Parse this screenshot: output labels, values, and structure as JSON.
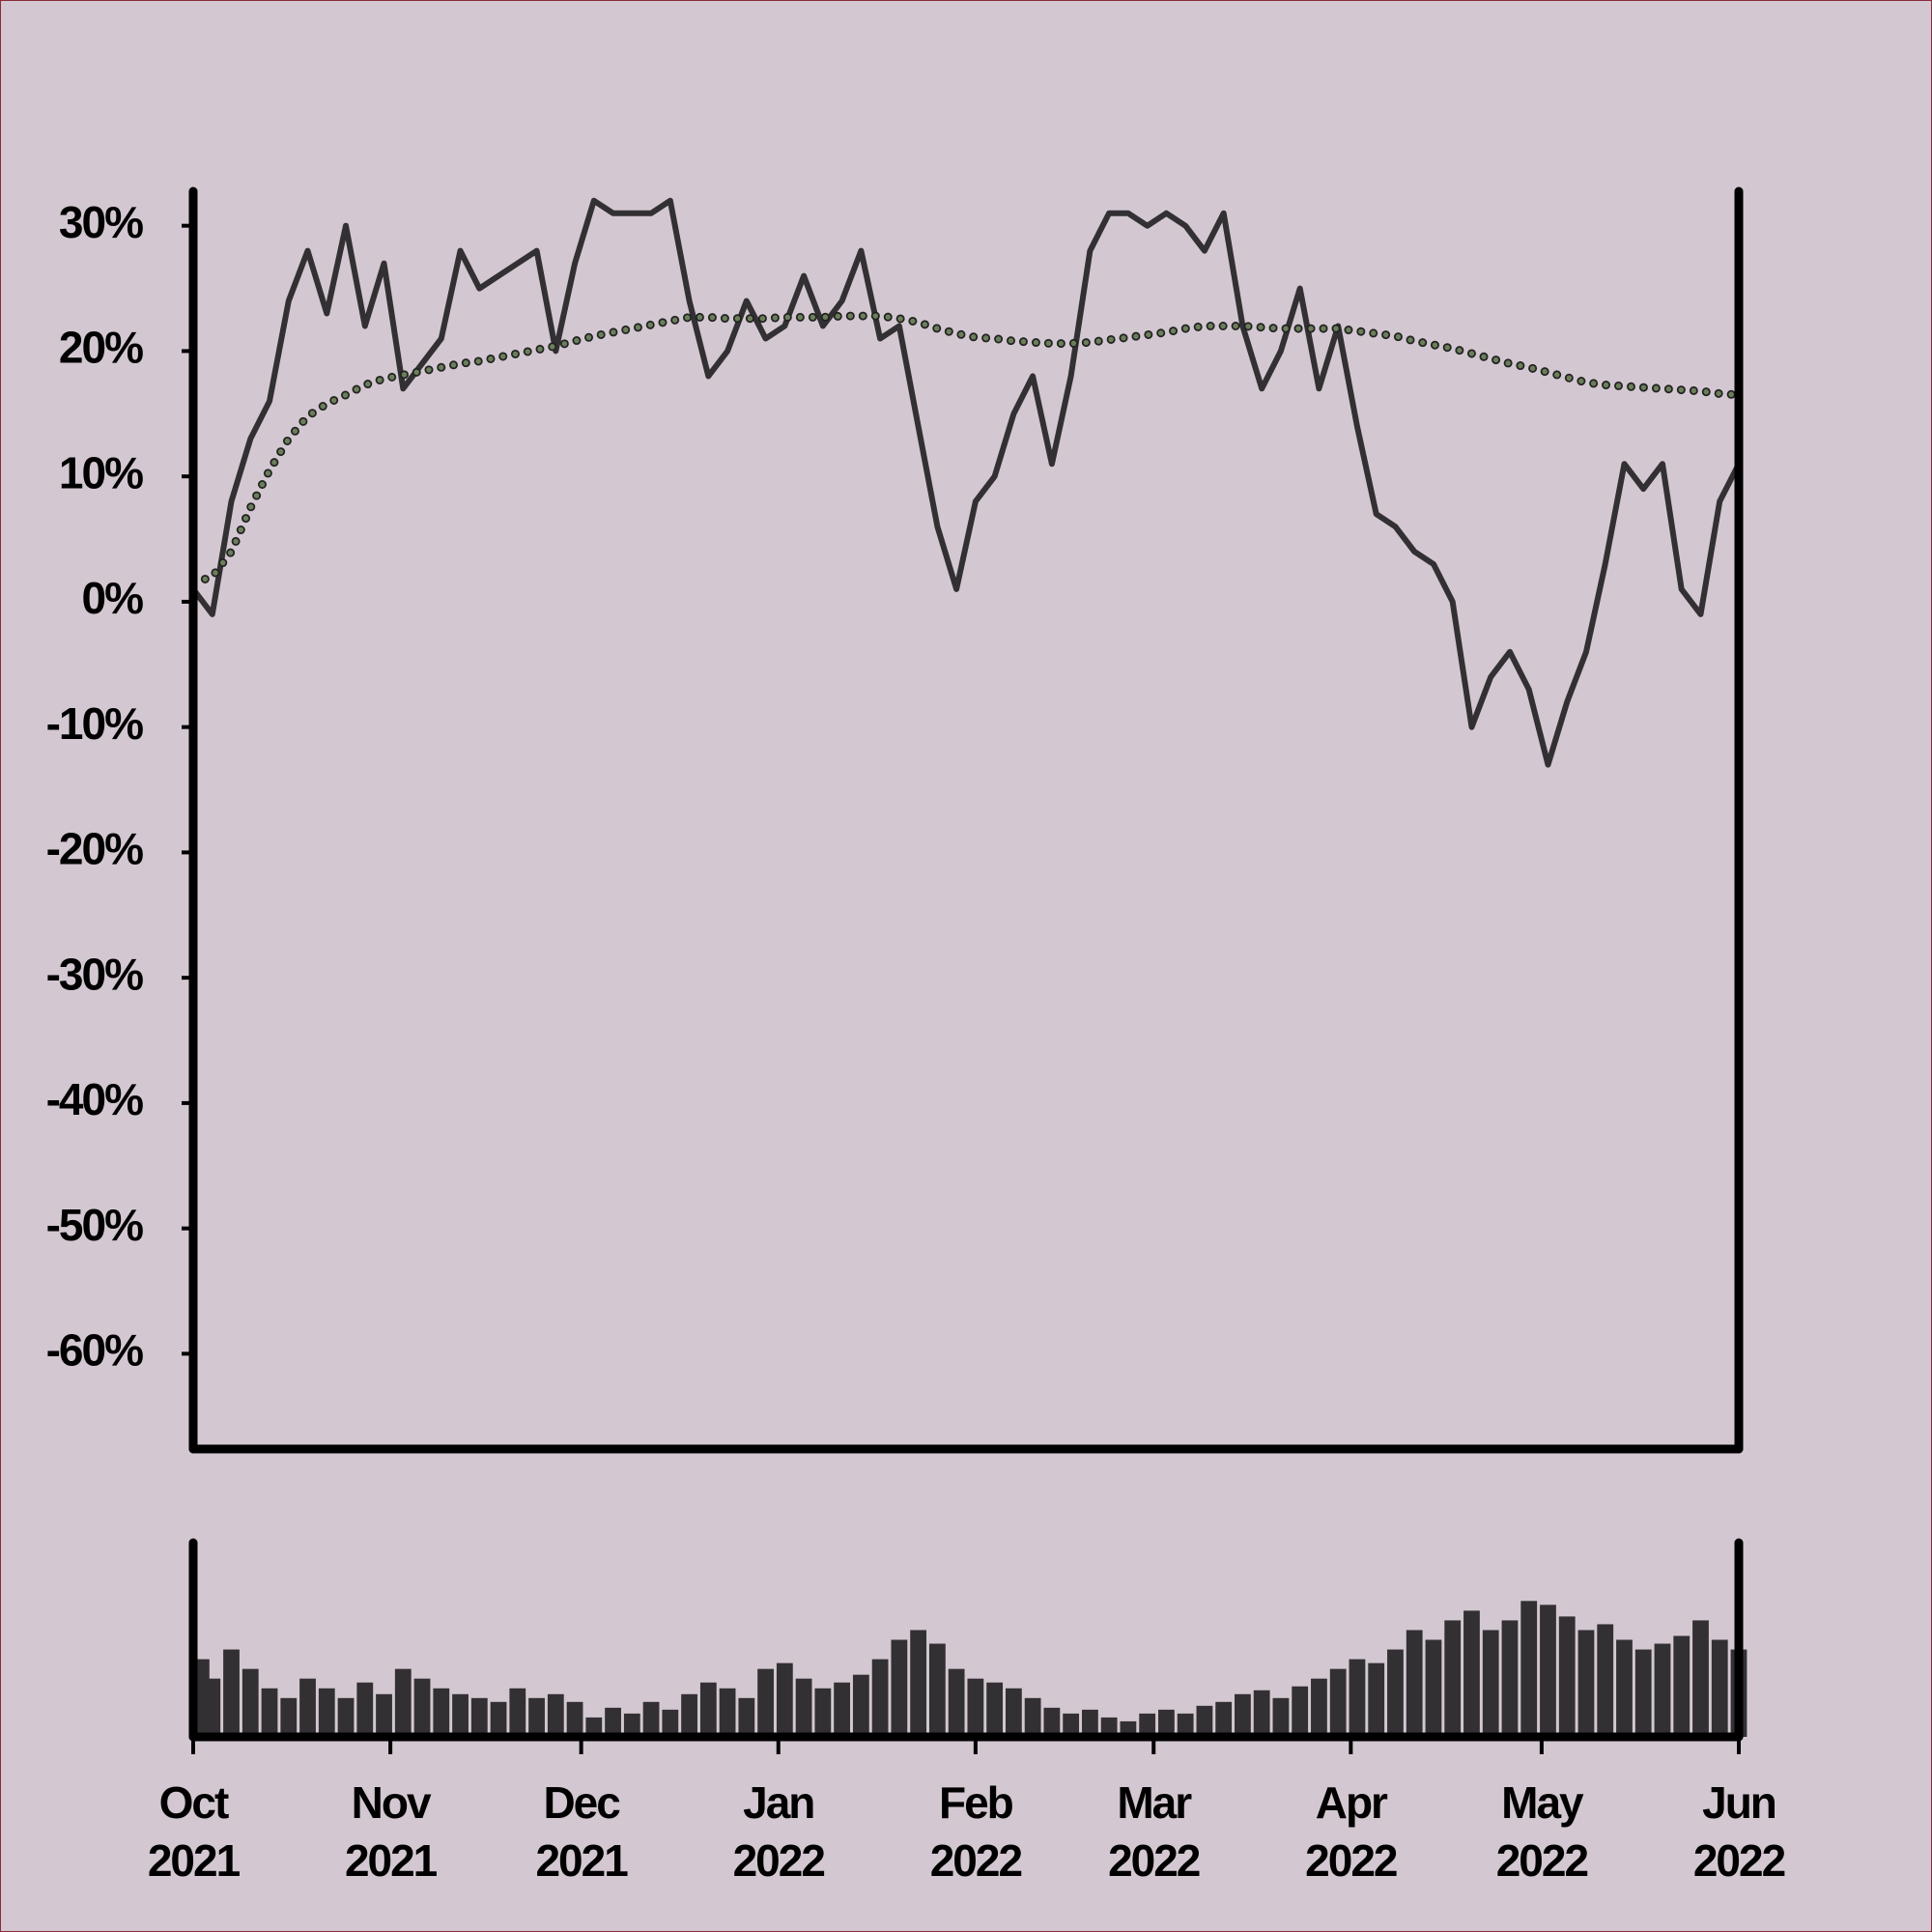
{
  "chart_data": [
    {
      "type": "line",
      "x": [
        0,
        3,
        6,
        9,
        12,
        15,
        18,
        21,
        24,
        27,
        30,
        33,
        36,
        39,
        42,
        45,
        48,
        51,
        54,
        57,
        60,
        63,
        66,
        69,
        72,
        75,
        78,
        81,
        84,
        87,
        90,
        93,
        96,
        99,
        102,
        105,
        108,
        111,
        114,
        117,
        120,
        123,
        126,
        129,
        132,
        135,
        138,
        141,
        144,
        147,
        150,
        153,
        156,
        159,
        162,
        165,
        168,
        171,
        174,
        177,
        180,
        183,
        186,
        189,
        192,
        195,
        198,
        201,
        204,
        207,
        210,
        213,
        216,
        219,
        222,
        225,
        228,
        231,
        234,
        237,
        240,
        243
      ],
      "xlim": [
        0,
        243
      ],
      "ylim": [
        -67.6,
        32.75
      ],
      "yticks": [
        {
          "value": 30,
          "label": "30%"
        },
        {
          "value": 20,
          "label": "20%"
        },
        {
          "value": 10,
          "label": "10%"
        },
        {
          "value": 0,
          "label": "0%"
        },
        {
          "value": -10,
          "label": "-10%"
        },
        {
          "value": -20,
          "label": "-20%"
        },
        {
          "value": -30,
          "label": "-30%"
        },
        {
          "value": -40,
          "label": "-40%"
        },
        {
          "value": -50,
          "label": "-50%"
        },
        {
          "value": -60,
          "label": "-60%"
        }
      ],
      "series": [
        {
          "color": "#333033",
          "style": "solid",
          "values": [
            1,
            -1,
            8,
            13,
            16,
            24,
            28,
            23,
            30,
            22,
            27,
            17,
            19,
            21,
            28,
            25,
            26,
            27,
            28,
            20,
            27,
            32,
            31,
            31,
            31,
            32,
            24,
            18,
            20,
            24,
            21,
            22,
            26,
            22,
            24,
            28,
            21,
            22,
            14,
            6,
            1,
            8,
            10,
            15,
            18,
            11,
            18,
            28,
            31,
            31,
            30,
            31,
            30,
            28,
            31,
            22,
            17,
            20,
            25,
            17,
            22,
            14,
            7,
            6,
            4,
            3,
            0,
            -10,
            -6,
            -4,
            -7,
            -13,
            -8,
            -4,
            3,
            11,
            9,
            11,
            1,
            -1,
            8,
            11
          ]
        },
        {
          "color": "#6b7f5a",
          "style": "dotted",
          "values": [
            1.5,
            2,
            4,
            7.5,
            10.5,
            13,
            14.8,
            15.8,
            16.5,
            17.3,
            17.8,
            18.1,
            18.4,
            18.7,
            19,
            19.2,
            19.5,
            19.8,
            20.1,
            20.4,
            20.8,
            21.2,
            21.5,
            21.8,
            22.1,
            22.4,
            22.7,
            22.7,
            22.6,
            22.6,
            22.6,
            22.7,
            22.7,
            22.7,
            22.8,
            22.8,
            22.8,
            22.6,
            22.3,
            21.8,
            21.4,
            21.1,
            21,
            20.8,
            20.7,
            20.6,
            20.6,
            20.7,
            20.9,
            21.1,
            21.3,
            21.5,
            21.8,
            22,
            22,
            22,
            21.9,
            21.8,
            21.8,
            21.8,
            21.8,
            21.6,
            21.4,
            21.2,
            20.8,
            20.5,
            20.2,
            19.8,
            19.4,
            19,
            18.7,
            18.3,
            17.9,
            17.5,
            17.3,
            17.2,
            17.1,
            17,
            16.9,
            16.8,
            16.6,
            16.5
          ]
        }
      ]
    },
    {
      "type": "bar",
      "color": "#333033",
      "xlim": [
        0,
        243
      ],
      "ylim": [
        0,
        100
      ],
      "xticks": [
        {
          "value": 0,
          "label": "Oct\n2021"
        },
        {
          "value": 31,
          "label": "Nov\n2021"
        },
        {
          "value": 61,
          "label": "Dec\n2021"
        },
        {
          "value": 92,
          "label": "Jan\n2022"
        },
        {
          "value": 123,
          "label": "Feb\n2022"
        },
        {
          "value": 151,
          "label": "Mar\n2022"
        },
        {
          "value": 182,
          "label": "Apr\n2022"
        },
        {
          "value": 212,
          "label": "May\n2022"
        },
        {
          "value": 243,
          "label": "Jun\n2022"
        }
      ],
      "values": [
        40,
        30,
        45,
        35,
        25,
        20,
        30,
        25,
        20,
        28,
        22,
        35,
        30,
        25,
        22,
        20,
        18,
        25,
        20,
        22,
        18,
        10,
        15,
        12,
        18,
        14,
        22,
        28,
        25,
        20,
        35,
        38,
        30,
        25,
        28,
        32,
        40,
        50,
        55,
        48,
        35,
        30,
        28,
        25,
        20,
        15,
        12,
        14,
        10,
        8,
        12,
        14,
        12,
        16,
        18,
        22,
        24,
        20,
        26,
        30,
        35,
        40,
        38,
        45,
        55,
        50,
        60,
        65,
        55,
        60,
        70,
        68,
        62,
        55,
        58,
        50,
        45,
        48,
        52,
        60,
        50,
        45
      ]
    }
  ]
}
